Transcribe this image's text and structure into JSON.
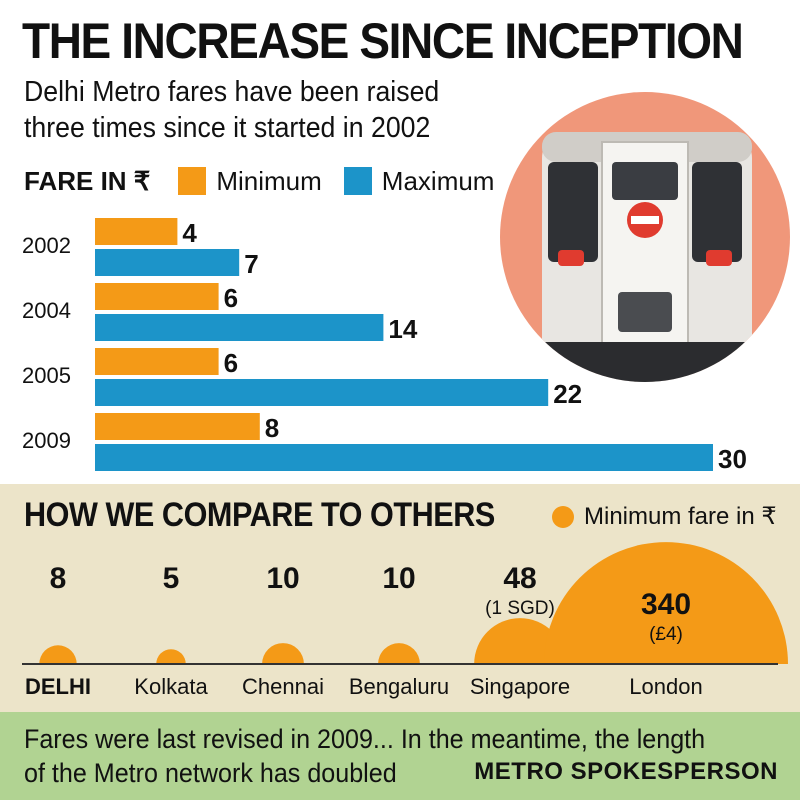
{
  "header": {
    "title": "THE INCREASE SINCE INCEPTION",
    "subtitle": "Delhi Metro fares have been raised three times since it started in 2002"
  },
  "legend": {
    "label": "FARE IN ₹",
    "min_label": "Minimum",
    "max_label": "Maximum"
  },
  "colors": {
    "minimum": "#f49a17",
    "maximum": "#1c94c9",
    "compare_bg": "#ece4c9",
    "footer_bg": "#b1d392"
  },
  "chart_data": [
    {
      "type": "bar",
      "orientation": "horizontal",
      "categories": [
        "2002",
        "2004",
        "2005",
        "2009"
      ],
      "series": [
        {
          "name": "Minimum",
          "values": [
            4,
            6,
            6,
            8
          ],
          "color": "#f49a17"
        },
        {
          "name": "Maximum",
          "values": [
            7,
            14,
            22,
            30
          ],
          "color": "#1c94c9"
        }
      ],
      "xlim": [
        0,
        30
      ],
      "grid": false
    },
    {
      "type": "bubble",
      "title": "HOW WE COMPARE TO OTHERS",
      "legend": "Minimum fare in ₹",
      "categories": [
        "DELHI",
        "Kolkata",
        "Chennai",
        "Bengaluru",
        "Singapore",
        "London"
      ],
      "values": [
        8,
        5,
        10,
        10,
        48,
        340
      ],
      "value_labels": [
        "8",
        "5",
        "10",
        "10",
        "48",
        "340"
      ],
      "sub_labels": [
        "",
        "",
        "",
        "",
        "(1 SGD)",
        "(£4)"
      ],
      "color": "#f49a17"
    }
  ],
  "compare": {
    "title": "HOW WE COMPARE TO OTHERS",
    "legend_label": "Minimum fare in ₹"
  },
  "footer": {
    "quote": "Fares were last revised in 2009... In the meantime, the length of the Metro network has doubled",
    "credit": "METRO SPOKESPERSON"
  }
}
